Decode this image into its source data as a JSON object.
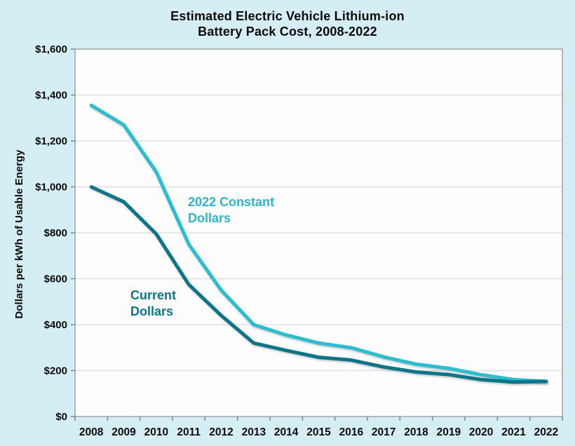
{
  "title": {
    "line1": "Estimated Electric Vehicle Lithium-ion",
    "line2": "Battery Pack Cost, 2008-2022"
  },
  "y_axis": {
    "title": "Dollars per kWh of Usable Energy",
    "tick_labels": [
      "$0",
      "$200",
      "$400",
      "$600",
      "$800",
      "$1,000",
      "$1,200",
      "$1,400",
      "$1,600"
    ]
  },
  "x_axis": {
    "tick_labels": [
      "2008",
      "2009",
      "2010",
      "2011",
      "2012",
      "2013",
      "2014",
      "2015",
      "2016",
      "2017",
      "2018",
      "2019",
      "2020",
      "2021",
      "2022"
    ]
  },
  "annotations": {
    "constant_label": "2022 Constant\nDollars",
    "current_label": "Current\nDollars"
  },
  "colors": {
    "background": "#d5eef4",
    "plot_background": "#fdfdfe",
    "plot_border": "#9aa3ab",
    "gridline": "#d9dcde",
    "tick": "#7d8790",
    "tick_text": "#0a0a0a",
    "constant_series": "#2fbdce",
    "current_series": "#0e7487"
  },
  "chart_data": {
    "type": "line",
    "title": "Estimated Electric Vehicle Lithium-ion Battery Pack Cost, 2008-2022",
    "xlabel": "",
    "ylabel": "Dollars per kWh of Usable Energy",
    "ylim": [
      0,
      1600
    ],
    "y_tick_step": 200,
    "grid": true,
    "legend_position": "inline-annotations",
    "categories": [
      2008,
      2009,
      2010,
      2011,
      2012,
      2013,
      2014,
      2015,
      2016,
      2017,
      2018,
      2019,
      2020,
      2021,
      2022
    ],
    "series": [
      {
        "name": "2022 Constant Dollars",
        "color": "#2fbdce",
        "values": [
          1355,
          1270,
          1065,
          750,
          550,
          400,
          355,
          320,
          300,
          260,
          228,
          210,
          182,
          161,
          153
        ]
      },
      {
        "name": "Current Dollars",
        "color": "#0e7487",
        "values": [
          1000,
          935,
          795,
          575,
          440,
          320,
          288,
          258,
          246,
          216,
          194,
          183,
          161,
          150,
          153
        ]
      }
    ]
  }
}
